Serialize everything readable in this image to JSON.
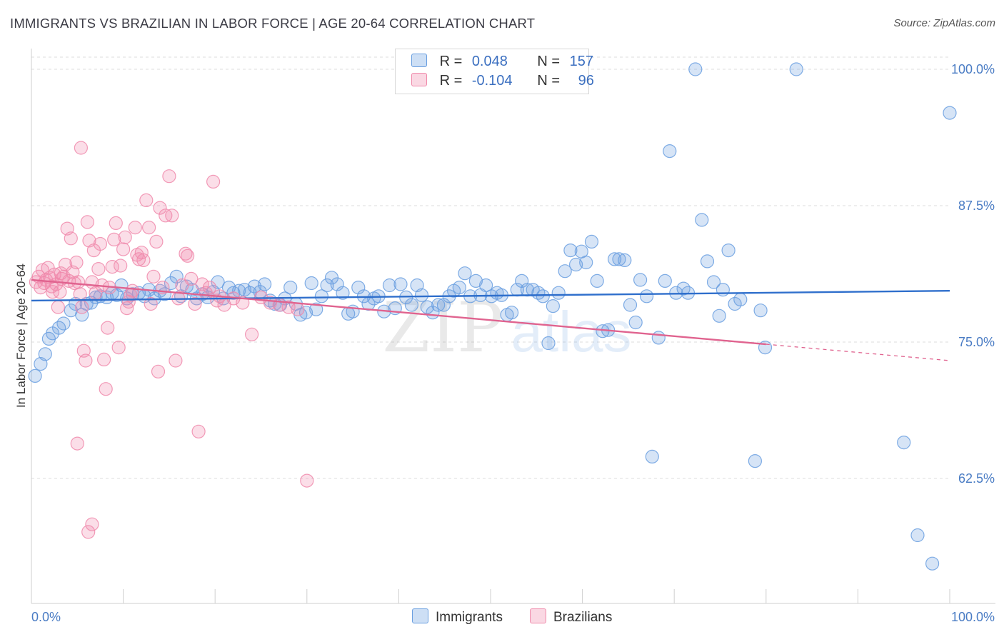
{
  "header": {
    "title": "IMMIGRANTS VS BRAZILIAN IN LABOR FORCE | AGE 20-64 CORRELATION CHART",
    "source": "Source: ZipAtlas.com"
  },
  "watermark": {
    "zip": "ZIP",
    "atlas": "atlas"
  },
  "legend": {
    "rows": [
      {
        "r_label": "R =",
        "r_value": "0.048",
        "n_label": "N =",
        "n_value": "157",
        "color": "#6a9fe0"
      },
      {
        "r_label": "R =",
        "r_value": "-0.104",
        "n_label": "N =",
        "n_value": "96",
        "color": "#f08aab"
      }
    ],
    "bottom": [
      {
        "label": "Immigrants",
        "color": "#6a9fe0"
      },
      {
        "label": "Brazilians",
        "color": "#f08aab"
      }
    ]
  },
  "chart_data": {
    "type": "scatter",
    "title": "IMMIGRANTS VS BRAZILIAN IN LABOR FORCE | AGE 20-64 CORRELATION CHART",
    "xlabel": "",
    "ylabel": "In Labor Force | Age 20-64",
    "xlim": [
      0,
      100
    ],
    "ylim": [
      52,
      102
    ],
    "x_tick_labels": [
      "0.0%",
      "100.0%"
    ],
    "y_ticks": [
      62.5,
      75.0,
      87.5,
      100.0
    ],
    "y_tick_labels": [
      "62.5%",
      "75.0%",
      "87.5%",
      "100.0%"
    ],
    "grid": true,
    "legend_placement": "top-center",
    "series": [
      {
        "name": "Immigrants",
        "color": "#6a9fe0",
        "line_color": "#2f6fcc",
        "trend": [
          [
            0,
            78.8
          ],
          [
            100,
            79.7
          ]
        ],
        "points": [
          [
            0.4,
            71.9
          ],
          [
            1.0,
            73.0
          ],
          [
            1.5,
            73.9
          ],
          [
            1.9,
            75.3
          ],
          [
            2.3,
            75.8
          ],
          [
            3.0,
            76.3
          ],
          [
            3.5,
            76.7
          ],
          [
            4.3,
            77.9
          ],
          [
            4.8,
            78.5
          ],
          [
            5.5,
            77.5
          ],
          [
            6.0,
            78.5
          ],
          [
            6.5,
            78.6
          ],
          [
            7.0,
            79.1
          ],
          [
            7.5,
            79.2
          ],
          [
            8.2,
            79.1
          ],
          [
            8.8,
            79.5
          ],
          [
            9.3,
            79.3
          ],
          [
            9.8,
            80.2
          ],
          [
            10.4,
            79.0
          ],
          [
            11.0,
            79.4
          ],
          [
            11.7,
            79.5
          ],
          [
            12.3,
            79.2
          ],
          [
            12.8,
            79.8
          ],
          [
            13.4,
            79.0
          ],
          [
            14.0,
            79.7
          ],
          [
            14.5,
            79.4
          ],
          [
            15.2,
            80.4
          ],
          [
            15.8,
            81.0
          ],
          [
            16.3,
            79.2
          ],
          [
            16.9,
            80.1
          ],
          [
            17.5,
            79.8
          ],
          [
            18.0,
            79.0
          ],
          [
            18.6,
            79.4
          ],
          [
            19.2,
            79.1
          ],
          [
            19.8,
            79.6
          ],
          [
            20.3,
            80.5
          ],
          [
            20.9,
            79.0
          ],
          [
            21.5,
            80.0
          ],
          [
            22.0,
            79.5
          ],
          [
            22.6,
            79.7
          ],
          [
            23.2,
            79.8
          ],
          [
            23.8,
            79.5
          ],
          [
            24.3,
            80.1
          ],
          [
            24.9,
            79.6
          ],
          [
            25.4,
            80.3
          ],
          [
            26.0,
            78.8
          ],
          [
            26.5,
            78.5
          ],
          [
            27.1,
            78.4
          ],
          [
            27.6,
            79.0
          ],
          [
            28.2,
            80.0
          ],
          [
            28.8,
            78.5
          ],
          [
            29.3,
            77.5
          ],
          [
            29.9,
            77.7
          ],
          [
            30.5,
            80.4
          ],
          [
            31.0,
            78.0
          ],
          [
            31.6,
            79.2
          ],
          [
            32.2,
            80.2
          ],
          [
            32.7,
            80.9
          ],
          [
            33.3,
            80.3
          ],
          [
            33.9,
            79.5
          ],
          [
            34.5,
            77.6
          ],
          [
            35.0,
            77.8
          ],
          [
            35.6,
            80.0
          ],
          [
            36.2,
            79.2
          ],
          [
            36.7,
            78.5
          ],
          [
            37.3,
            79.0
          ],
          [
            37.8,
            79.2
          ],
          [
            38.4,
            77.8
          ],
          [
            39.0,
            80.2
          ],
          [
            39.6,
            78.1
          ],
          [
            40.2,
            80.3
          ],
          [
            40.8,
            79.1
          ],
          [
            41.4,
            78.4
          ],
          [
            42.0,
            80.2
          ],
          [
            42.5,
            79.3
          ],
          [
            43.1,
            78.2
          ],
          [
            43.7,
            77.7
          ],
          [
            44.3,
            78.4
          ],
          [
            44.9,
            78.4
          ],
          [
            45.5,
            79.2
          ],
          [
            46.0,
            79.7
          ],
          [
            46.6,
            80.0
          ],
          [
            47.2,
            81.3
          ],
          [
            47.8,
            79.2
          ],
          [
            48.4,
            80.6
          ],
          [
            48.9,
            79.3
          ],
          [
            49.5,
            80.2
          ],
          [
            50.1,
            79.2
          ],
          [
            50.7,
            79.5
          ],
          [
            51.2,
            79.3
          ],
          [
            51.8,
            77.5
          ],
          [
            52.3,
            77.7
          ],
          [
            52.9,
            79.8
          ],
          [
            53.4,
            80.6
          ],
          [
            54.0,
            79.8
          ],
          [
            54.6,
            79.8
          ],
          [
            55.2,
            79.5
          ],
          [
            55.7,
            79.2
          ],
          [
            56.3,
            74.9
          ],
          [
            56.8,
            78.3
          ],
          [
            57.4,
            79.5
          ],
          [
            58.1,
            81.5
          ],
          [
            58.7,
            83.4
          ],
          [
            59.3,
            82.1
          ],
          [
            59.9,
            83.3
          ],
          [
            60.4,
            82.3
          ],
          [
            61.0,
            84.2
          ],
          [
            61.6,
            80.6
          ],
          [
            62.2,
            76.0
          ],
          [
            62.8,
            76.1
          ],
          [
            63.5,
            82.6
          ],
          [
            64.0,
            82.6
          ],
          [
            64.6,
            82.5
          ],
          [
            65.2,
            78.4
          ],
          [
            65.8,
            76.8
          ],
          [
            66.3,
            80.7
          ],
          [
            67.0,
            79.2
          ],
          [
            67.6,
            64.5
          ],
          [
            68.3,
            75.4
          ],
          [
            69.0,
            80.6
          ],
          [
            69.5,
            92.5
          ],
          [
            70.2,
            79.5
          ],
          [
            71.0,
            79.9
          ],
          [
            71.5,
            79.5
          ],
          [
            72.3,
            100.0
          ],
          [
            73.0,
            86.2
          ],
          [
            73.6,
            82.4
          ],
          [
            74.3,
            80.5
          ],
          [
            74.9,
            77.4
          ],
          [
            75.3,
            79.8
          ],
          [
            75.9,
            83.4
          ],
          [
            76.6,
            78.5
          ],
          [
            77.2,
            78.9
          ],
          [
            78.8,
            64.1
          ],
          [
            79.4,
            77.9
          ],
          [
            79.9,
            74.5
          ],
          [
            83.3,
            100.0
          ],
          [
            95.0,
            65.8
          ],
          [
            96.5,
            57.3
          ],
          [
            98.1,
            54.7
          ],
          [
            100.0,
            96.0
          ]
        ]
      },
      {
        "name": "Brazilians",
        "color": "#f08aab",
        "line_color": "#e0638f",
        "trend": [
          [
            0,
            80.7
          ],
          [
            80,
            74.8
          ]
        ],
        "trend_dashed": [
          [
            80,
            74.8
          ],
          [
            100,
            73.3
          ]
        ],
        "points": [
          [
            0.5,
            80.5
          ],
          [
            0.8,
            81.0
          ],
          [
            1.0,
            80.0
          ],
          [
            1.2,
            81.6
          ],
          [
            1.4,
            80.4
          ],
          [
            1.6,
            80.7
          ],
          [
            1.8,
            81.8
          ],
          [
            2.0,
            80.9
          ],
          [
            2.3,
            79.6
          ],
          [
            2.5,
            81.2
          ],
          [
            2.7,
            80.3
          ],
          [
            2.9,
            78.2
          ],
          [
            3.1,
            79.6
          ],
          [
            3.3,
            80.8
          ],
          [
            3.5,
            81.0
          ],
          [
            3.7,
            82.1
          ],
          [
            3.9,
            85.4
          ],
          [
            4.1,
            80.6
          ],
          [
            4.3,
            84.5
          ],
          [
            4.5,
            81.4
          ],
          [
            4.7,
            80.4
          ],
          [
            4.9,
            82.3
          ],
          [
            5.1,
            80.5
          ],
          [
            5.3,
            79.4
          ],
          [
            5.5,
            78.2
          ],
          [
            5.7,
            74.2
          ],
          [
            5.9,
            73.3
          ],
          [
            6.1,
            86.0
          ],
          [
            6.3,
            84.3
          ],
          [
            6.6,
            80.5
          ],
          [
            6.8,
            83.4
          ],
          [
            7.0,
            79.5
          ],
          [
            7.3,
            81.7
          ],
          [
            7.5,
            84.0
          ],
          [
            7.7,
            80.2
          ],
          [
            7.9,
            73.4
          ],
          [
            8.1,
            70.7
          ],
          [
            8.3,
            76.3
          ],
          [
            8.5,
            80.0
          ],
          [
            8.8,
            81.9
          ],
          [
            9.0,
            84.4
          ],
          [
            9.2,
            85.9
          ],
          [
            9.5,
            74.5
          ],
          [
            9.7,
            82.0
          ],
          [
            10.0,
            83.5
          ],
          [
            10.2,
            84.6
          ],
          [
            10.4,
            78.1
          ],
          [
            10.6,
            78.7
          ],
          [
            10.8,
            79.3
          ],
          [
            11.0,
            79.7
          ],
          [
            11.3,
            85.5
          ],
          [
            11.5,
            83.0
          ],
          [
            11.7,
            82.6
          ],
          [
            12.0,
            83.2
          ],
          [
            12.2,
            82.5
          ],
          [
            12.5,
            88.0
          ],
          [
            12.8,
            85.5
          ],
          [
            13.0,
            78.5
          ],
          [
            13.3,
            81.0
          ],
          [
            13.6,
            84.2
          ],
          [
            13.8,
            72.3
          ],
          [
            14.0,
            87.3
          ],
          [
            14.3,
            80.0
          ],
          [
            14.6,
            86.6
          ],
          [
            15.0,
            90.2
          ],
          [
            15.3,
            86.6
          ],
          [
            15.7,
            73.3
          ],
          [
            16.0,
            79.0
          ],
          [
            16.4,
            80.2
          ],
          [
            16.8,
            83.1
          ],
          [
            17.0,
            82.9
          ],
          [
            17.4,
            80.8
          ],
          [
            17.8,
            78.5
          ],
          [
            18.2,
            66.8
          ],
          [
            18.6,
            80.3
          ],
          [
            19.0,
            79.5
          ],
          [
            19.4,
            80.0
          ],
          [
            19.8,
            89.7
          ],
          [
            20.2,
            78.8
          ],
          [
            20.5,
            79.2
          ],
          [
            21.0,
            78.4
          ],
          [
            22.0,
            79.0
          ],
          [
            23.0,
            78.6
          ],
          [
            24.0,
            75.7
          ],
          [
            25.0,
            79.1
          ],
          [
            26.0,
            78.6
          ],
          [
            27.0,
            78.4
          ],
          [
            28.0,
            78.2
          ],
          [
            29.0,
            78.0
          ],
          [
            30.0,
            62.3
          ],
          [
            5.0,
            65.7
          ],
          [
            6.2,
            57.6
          ],
          [
            6.6,
            58.3
          ],
          [
            5.4,
            92.8
          ],
          [
            3.2,
            81.3
          ],
          [
            2.2,
            80.1
          ]
        ]
      }
    ]
  }
}
